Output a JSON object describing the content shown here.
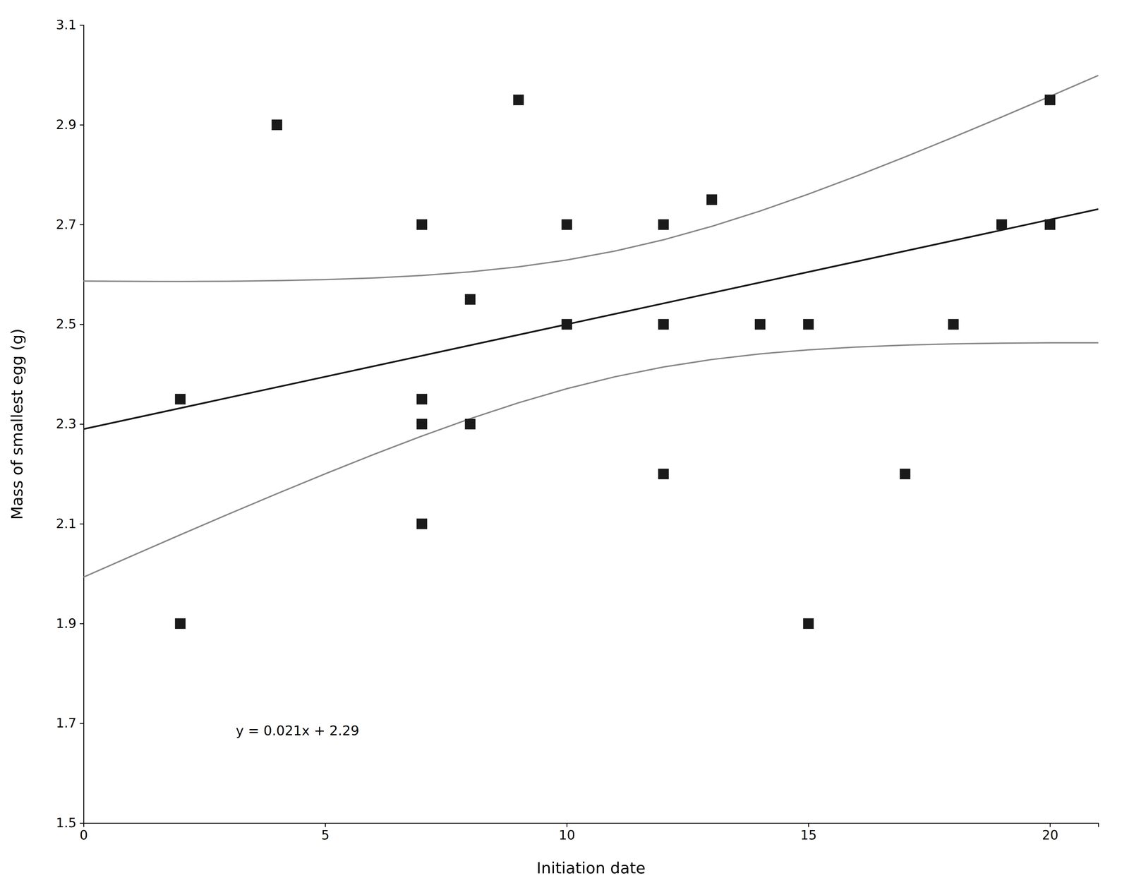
{
  "chart_data": {
    "type": "scatter",
    "xlabel": "Initiation date",
    "ylabel": "Mass of smallest egg (g)",
    "annotations": [
      "y = 0.021x + 2.29"
    ],
    "xlim": [
      0,
      21
    ],
    "ylim": [
      1.5,
      3.1
    ],
    "xticks": [
      0,
      5,
      10,
      15,
      20
    ],
    "yticks": [
      1.5,
      1.7,
      1.9,
      2.1,
      2.3,
      2.5,
      2.7,
      2.9,
      3.1
    ],
    "grid": false,
    "series": [
      {
        "type": "scatter",
        "marker": "square",
        "color": "#1a1a1a",
        "x": [
          2,
          2,
          4,
          7,
          7,
          7,
          7,
          8,
          8,
          9,
          10,
          10,
          12,
          12,
          12,
          13,
          14,
          15,
          15,
          17,
          18,
          19,
          20,
          20
        ],
        "values": [
          1.9,
          2.35,
          2.9,
          2.3,
          2.35,
          2.7,
          2.1,
          2.55,
          2.3,
          2.95,
          2.5,
          2.7,
          2.5,
          2.7,
          2.2,
          2.75,
          2.5,
          1.9,
          2.5,
          2.2,
          2.5,
          2.7,
          2.95,
          2.7
        ]
      },
      {
        "type": "line",
        "line_style": "solid",
        "color": "#1a1a1a",
        "x": [
          0,
          21
        ],
        "values": [
          2.29,
          2.731
        ]
      },
      {
        "type": "line",
        "line_style": "solid",
        "color": "#888888",
        "x": [
          0,
          1,
          2,
          3,
          4,
          5,
          6,
          7,
          8,
          9,
          10,
          11,
          12,
          13,
          14,
          15,
          16,
          17,
          18,
          19,
          20,
          21
        ],
        "values": [
          2.5868,
          2.5862,
          2.586,
          2.5864,
          2.5876,
          2.5897,
          2.593,
          2.598,
          2.6052,
          2.6153,
          2.629,
          2.647,
          2.6695,
          2.6965,
          2.7272,
          2.7611,
          2.7975,
          2.8356,
          2.8752,
          2.9157,
          2.9571,
          2.9991
        ]
      },
      {
        "type": "line",
        "line_style": "solid",
        "color": "#888888",
        "x": [
          0,
          1,
          2,
          3,
          4,
          5,
          6,
          7,
          8,
          9,
          10,
          11,
          12,
          13,
          14,
          15,
          16,
          17,
          18,
          19,
          20,
          21
        ],
        "values": [
          1.9932,
          2.0358,
          2.078,
          2.1196,
          2.1604,
          2.2003,
          2.239,
          2.276,
          2.3108,
          2.3427,
          2.371,
          2.395,
          2.4145,
          2.4295,
          2.4408,
          2.4489,
          2.4545,
          2.4584,
          2.4608,
          2.4623,
          2.4629,
          2.4629
        ]
      }
    ]
  }
}
